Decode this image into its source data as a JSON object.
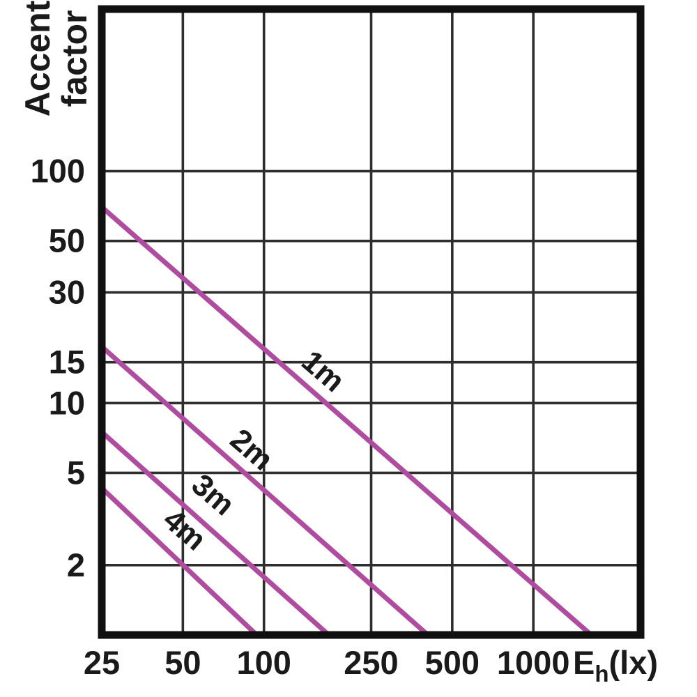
{
  "chart_data": {
    "type": "line",
    "title": "",
    "x_axis": {
      "unit_main": "E",
      "unit_sub": "h",
      "unit_suffix": "(lx)",
      "scale": "log",
      "range": [
        25,
        2500
      ],
      "ticks": [
        {
          "v": 25,
          "label": "25"
        },
        {
          "v": 50,
          "label": "50"
        },
        {
          "v": 100,
          "label": "100"
        },
        {
          "v": 250,
          "label": "250"
        },
        {
          "v": 500,
          "label": "500"
        },
        {
          "v": 1000,
          "label": "1000"
        }
      ]
    },
    "y_axis": {
      "label_line1": "Accent",
      "label_line2": "factor",
      "scale": "log",
      "range": [
        1,
        500
      ],
      "ticks": [
        {
          "v": 100,
          "label": "100"
        },
        {
          "v": 50,
          "label": "50"
        },
        {
          "v": 30,
          "label": "30"
        },
        {
          "v": 15,
          "label": "15"
        },
        {
          "v": 10,
          "label": "10"
        },
        {
          "v": 5,
          "label": "5"
        },
        {
          "v": 2,
          "label": "2"
        }
      ]
    },
    "grid": true,
    "legend_position": "on-line-labels",
    "series": [
      {
        "name": "1m",
        "points": [
          [
            25,
            70.0
          ],
          [
            1640,
            1
          ]
        ],
        "label_anchor": [
          164,
          13.5
        ]
      },
      {
        "name": "2m",
        "points": [
          [
            25,
            17.5
          ],
          [
            406,
            1
          ]
        ],
        "label_anchor": [
          89,
          6.2
        ]
      },
      {
        "name": "3m",
        "points": [
          [
            25,
            7.5
          ],
          [
            174,
            1
          ]
        ],
        "label_anchor": [
          64,
          3.96
        ]
      },
      {
        "name": "4m",
        "points": [
          [
            25,
            4.3
          ],
          [
            94,
            1
          ]
        ],
        "label_anchor": [
          50.2,
          2.8
        ]
      }
    ],
    "colors": {
      "line": "#b04c9f",
      "grid": "#2e2e2e",
      "frame": "#101010",
      "text": "#1a1a1a",
      "background": "#ffffff"
    }
  }
}
